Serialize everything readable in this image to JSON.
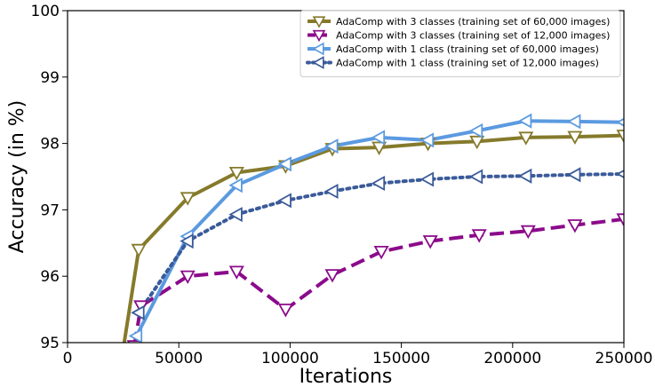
{
  "chart_data": {
    "type": "line",
    "xlabel": "Iterations",
    "ylabel": "Accuracy (in %)",
    "xlim": [
      0,
      250000
    ],
    "ylim": [
      95,
      100
    ],
    "x_ticks": [
      0,
      50000,
      100000,
      150000,
      200000,
      250000
    ],
    "y_ticks": [
      95,
      96,
      97,
      98,
      99,
      100
    ],
    "grid": false,
    "legend_position": "top-right",
    "series": [
      {
        "name": "AdaComp with 3 classes (training set of 60,000 images)",
        "color": "#857a2b",
        "line_style": "solid",
        "marker": "triangle-down",
        "points": [
          [
            25000,
            94.9
          ],
          [
            32000,
            96.4
          ],
          [
            54000,
            97.18
          ],
          [
            76000,
            97.56
          ],
          [
            98000,
            97.66
          ],
          [
            119000,
            97.92
          ],
          [
            140000,
            97.94
          ],
          [
            162000,
            98.0
          ],
          [
            184000,
            98.03
          ],
          [
            206000,
            98.09
          ],
          [
            228000,
            98.1
          ],
          [
            250000,
            98.12
          ]
        ]
      },
      {
        "name": "AdaComp with 3 classes (training set of 12,000 images)",
        "color": "#8b0a8b",
        "line_style": "dashed",
        "marker": "triangle-down",
        "points": [
          [
            30000,
            94.95
          ],
          [
            33000,
            95.55
          ],
          [
            54000,
            96.0
          ],
          [
            76000,
            96.07
          ],
          [
            98000,
            95.5
          ],
          [
            119000,
            96.02
          ],
          [
            141000,
            96.37
          ],
          [
            163000,
            96.53
          ],
          [
            185000,
            96.62
          ],
          [
            207000,
            96.68
          ],
          [
            228000,
            96.77
          ],
          [
            250000,
            96.86
          ]
        ]
      },
      {
        "name": "AdaComp with 1 class (training set of 60,000 images)",
        "color": "#5b9ae0",
        "line_style": "solid",
        "marker": "triangle-left",
        "points": [
          [
            31000,
            95.1
          ],
          [
            54000,
            96.6
          ],
          [
            76000,
            97.37
          ],
          [
            98000,
            97.69
          ],
          [
            119000,
            97.96
          ],
          [
            140000,
            98.09
          ],
          [
            162000,
            98.05
          ],
          [
            184000,
            98.19
          ],
          [
            206000,
            98.34
          ],
          [
            228000,
            98.33
          ],
          [
            250000,
            98.32
          ]
        ]
      },
      {
        "name": "AdaComp with 1 class (training set of 12,000 images)",
        "color": "#3a5a99",
        "line_style": "dotted",
        "marker": "triangle-left",
        "points": [
          [
            32000,
            95.45
          ],
          [
            54000,
            96.53
          ],
          [
            76000,
            96.93
          ],
          [
            98000,
            97.14
          ],
          [
            119000,
            97.28
          ],
          [
            140000,
            97.4
          ],
          [
            162000,
            97.46
          ],
          [
            184000,
            97.5
          ],
          [
            206000,
            97.51
          ],
          [
            228000,
            97.53
          ],
          [
            250000,
            97.54
          ]
        ]
      }
    ]
  }
}
